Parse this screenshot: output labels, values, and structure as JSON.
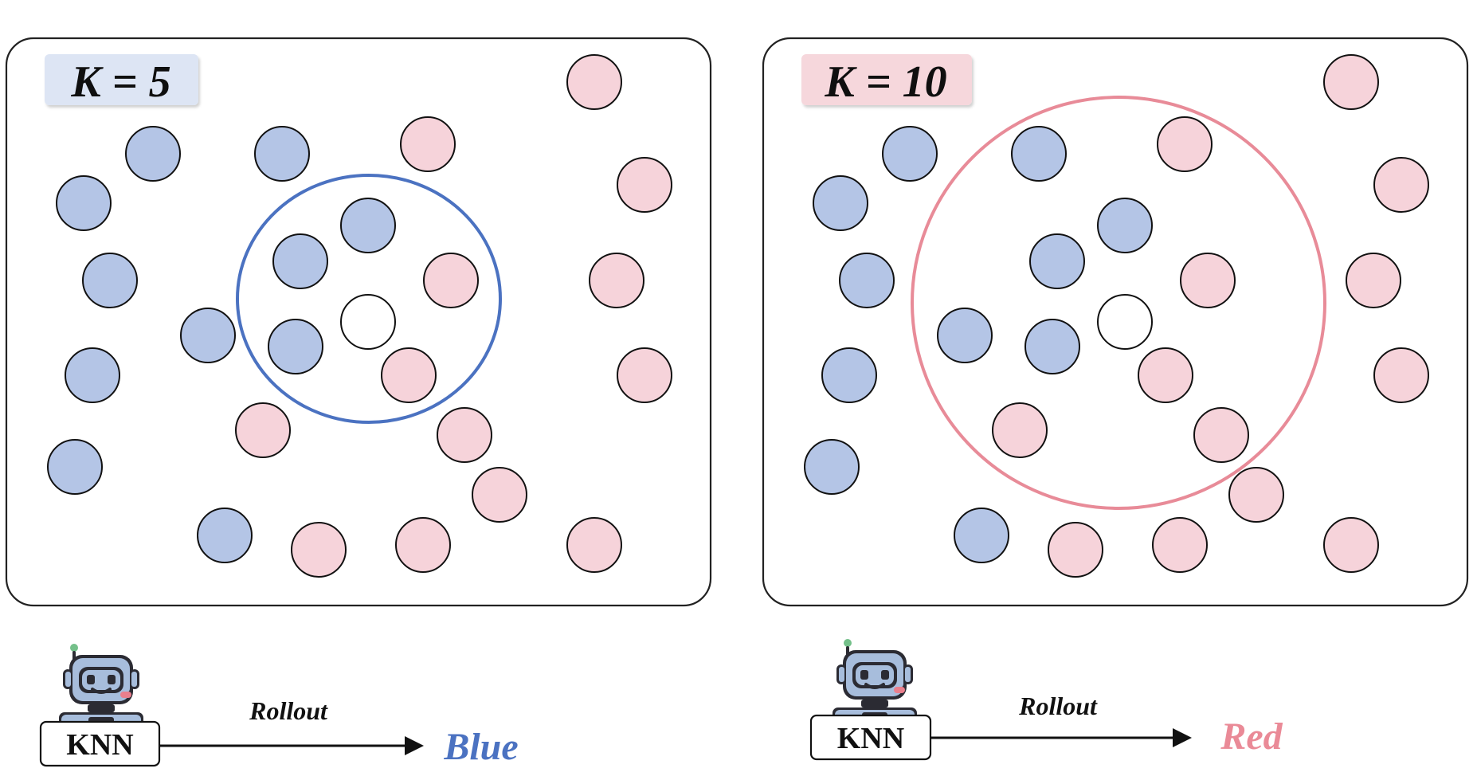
{
  "colors": {
    "blue_fill": "#b4c5e6",
    "red_fill": "#f6d3da",
    "query_fill": "#ffffff",
    "blue_ring": "#4b72c1",
    "red_ring": "#e88b98",
    "k5_label_bg": "#dde5f4",
    "k10_label_bg": "#f6d7dc",
    "blue_text": "#4b72c1",
    "red_text": "#ea8a97",
    "robot_primary": "#a7bddc",
    "robot_dark": "#2b2b33",
    "robot_accent": "#ea7f8d",
    "robot_green": "#74c08a"
  },
  "panels": [
    {
      "id": "k5",
      "k_label": "K = 5",
      "selection_ring": "blue",
      "rollout_label": "Rollout",
      "result_label": "Blue",
      "result_color": "blue"
    },
    {
      "id": "k10",
      "k_label": "K = 10",
      "selection_ring": "red",
      "rollout_label": "Rollout",
      "result_label": "Red",
      "result_color": "red"
    }
  ],
  "model_label": "KNN",
  "icons": {
    "robot": "robot-icon",
    "arrow": "arrow-icon"
  }
}
